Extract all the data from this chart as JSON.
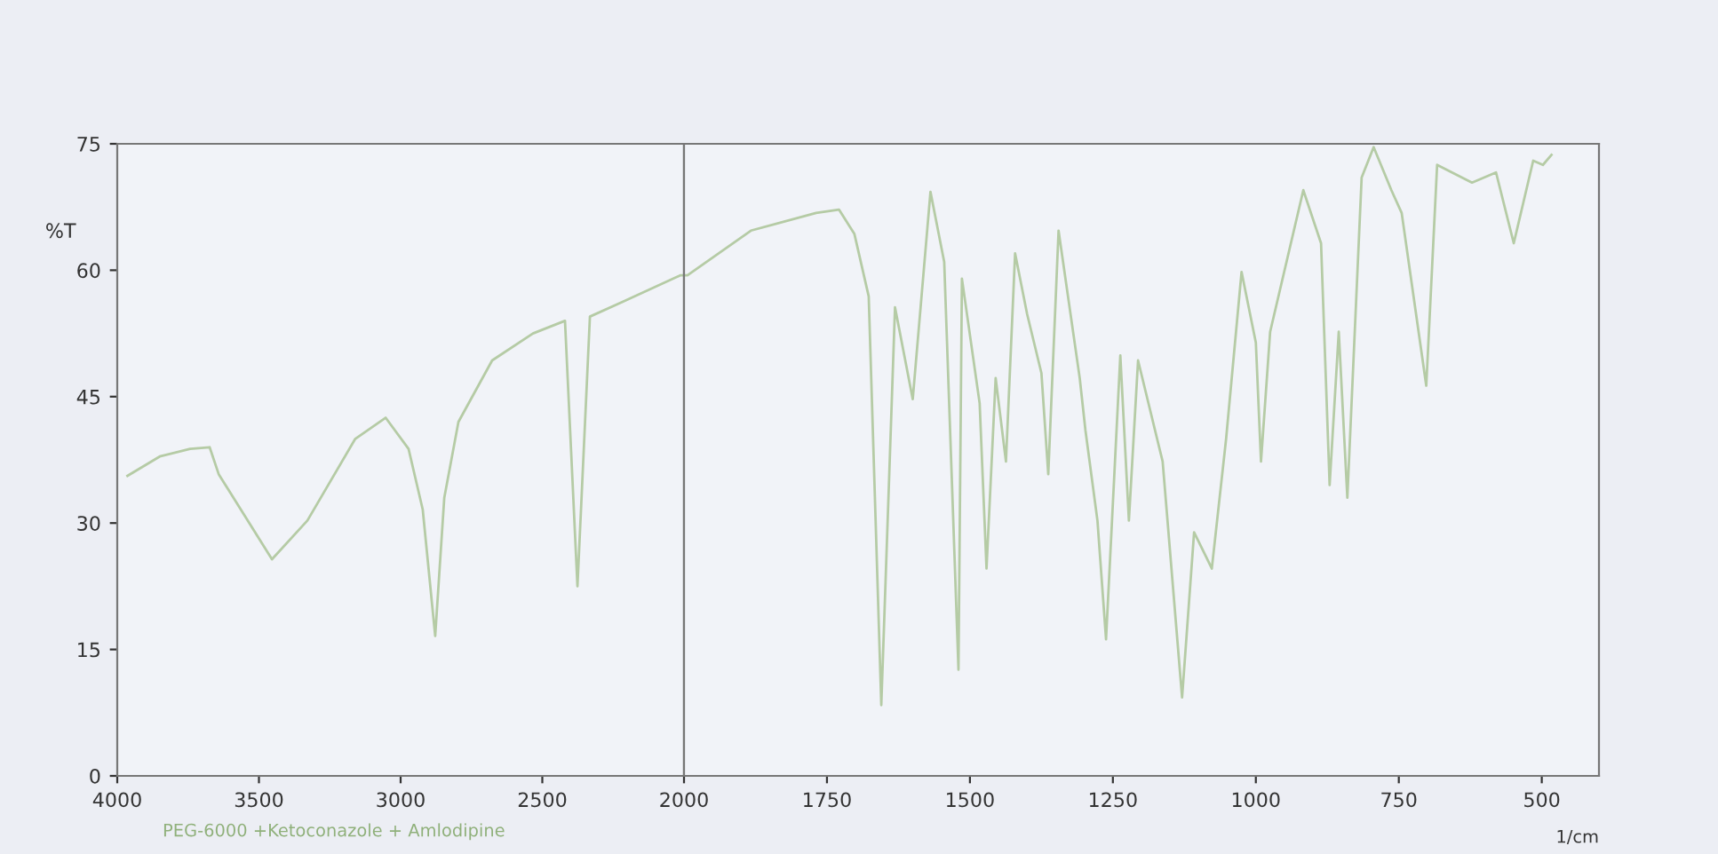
{
  "chart_data": [
    {
      "type": "line",
      "ylabel": "%T",
      "xlim": [
        4000,
        2000
      ],
      "xticks": [
        4000,
        3500,
        3000,
        2500,
        2000
      ],
      "ylim": [
        0,
        75
      ],
      "yticks": [
        0,
        15,
        30,
        45,
        60,
        75
      ],
      "grid": false,
      "marker": "none",
      "line_style": "solid",
      "annotations": [
        "PEG-6000 +Ketoconazole + Amlodipine"
      ],
      "series": [
        {
          "color": "#b5cba5",
          "x": [
            3964,
            3850,
            3743,
            3674,
            3642,
            3454,
            3329,
            3160,
            3053,
            2972,
            2922,
            2878,
            2846,
            2796,
            2677,
            2533,
            2420,
            2376,
            2332,
            2220,
            2012,
            2000
          ],
          "values": [
            35.6,
            37.9,
            38.8,
            39.0,
            35.8,
            25.7,
            30.3,
            40.0,
            42.5,
            38.8,
            31.6,
            16.6,
            33.0,
            42.0,
            49.3,
            52.5,
            54.0,
            22.5,
            54.5,
            56.2,
            59.4,
            59.4
          ]
        }
      ]
    },
    {
      "type": "line",
      "xlabel": "1/cm",
      "xlim": [
        2000,
        400
      ],
      "xticks": [
        1750,
        1500,
        1250,
        1000,
        750,
        500
      ],
      "ylim": [
        0,
        75
      ],
      "yticks": [
        0,
        15,
        30,
        45,
        60,
        75
      ],
      "tick_labels": "x",
      "grid": false,
      "marker": "none",
      "line_style": "solid",
      "series": [
        {
          "color": "#b5cba5",
          "x": [
            2000,
            1994,
            1883,
            1769,
            1729,
            1702,
            1677,
            1655,
            1631,
            1600,
            1569,
            1545,
            1520,
            1514,
            1483,
            1471,
            1455,
            1437,
            1421,
            1400,
            1375,
            1363,
            1345,
            1308,
            1298,
            1277,
            1262,
            1237,
            1222,
            1206,
            1163,
            1129,
            1108,
            1077,
            1052,
            1025,
            1000,
            991,
            975,
            917,
            886,
            871,
            855,
            840,
            815,
            794,
            763,
            745,
            702,
            683,
            622,
            580,
            549,
            515,
            498,
            483
          ],
          "values": [
            59.4,
            59.4,
            64.7,
            66.8,
            67.2,
            64.3,
            56.9,
            8.4,
            55.6,
            44.7,
            69.3,
            61.0,
            12.6,
            59.0,
            44.2,
            24.6,
            47.2,
            37.3,
            62.0,
            54.8,
            47.8,
            35.8,
            64.7,
            47.2,
            41.0,
            30.3,
            16.2,
            49.9,
            30.3,
            49.3,
            37.3,
            9.3,
            28.9,
            24.6,
            40.0,
            59.8,
            51.4,
            37.3,
            52.7,
            69.5,
            63.2,
            34.5,
            52.7,
            33.0,
            71.0,
            74.6,
            69.5,
            66.8,
            46.3,
            72.5,
            70.4,
            71.6,
            63.2,
            73.0,
            72.5,
            73.7
          ]
        }
      ]
    }
  ]
}
